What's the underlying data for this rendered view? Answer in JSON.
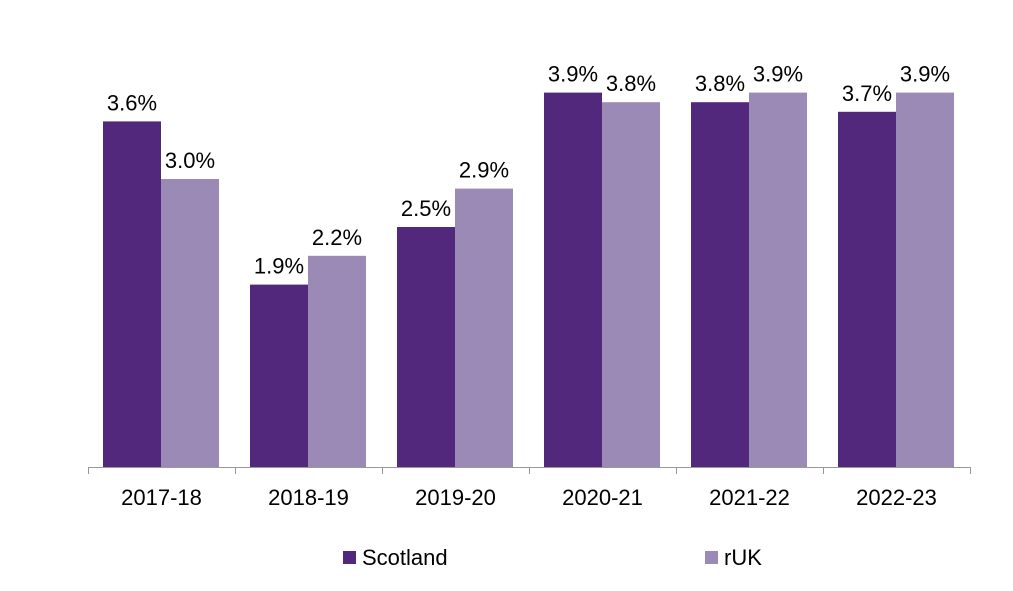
{
  "chart_data": {
    "type": "bar",
    "title": "",
    "xlabel": "",
    "ylabel": "",
    "categories": [
      "2017-18",
      "2018-19",
      "2019-20",
      "2020-21",
      "2021-22",
      "2022-23"
    ],
    "series": [
      {
        "name": "Scotland",
        "color": "#51287b",
        "values": [
          3.6,
          1.9,
          2.5,
          3.9,
          3.8,
          3.7
        ],
        "labels": [
          "3.6%",
          "1.9%",
          "2.5%",
          "3.9%",
          "3.8%",
          "3.7%"
        ]
      },
      {
        "name": "rUK",
        "color": "#9b8ab5",
        "values": [
          3.0,
          2.2,
          2.9,
          3.8,
          3.9,
          3.9
        ],
        "labels": [
          "3.0%",
          "2.2%",
          "2.9%",
          "3.8%",
          "3.9%",
          "3.9%"
        ]
      }
    ],
    "ylim": [
      0,
      4.0
    ],
    "grid": false,
    "legend_position": "bottom",
    "axis_color": "#999999"
  }
}
